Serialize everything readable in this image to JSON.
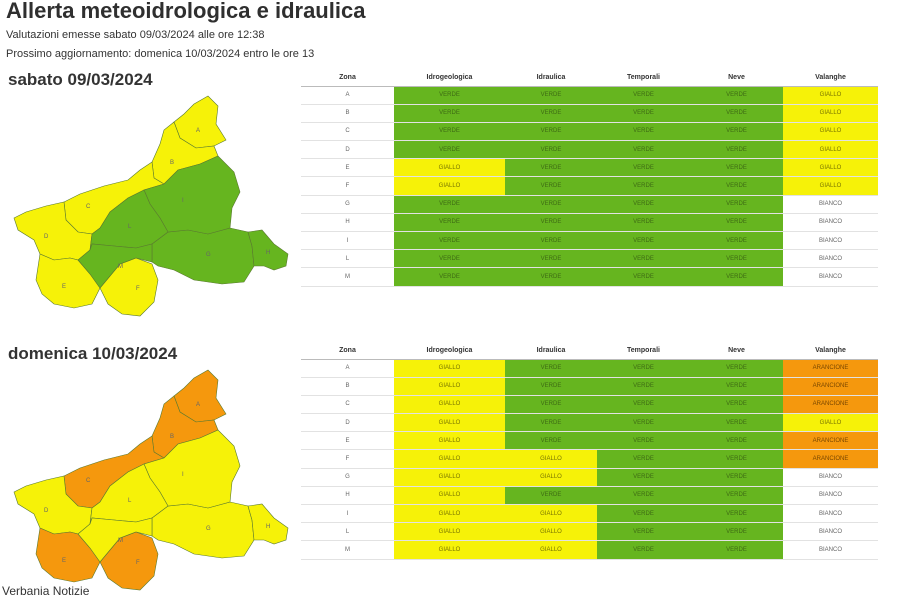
{
  "header": {
    "title": "Allerta meteoidrologica e idraulica",
    "issued": "Valutazioni emesse sabato 09/03/2024 alle ore 12:38",
    "next_update": "Prossimo aggiornamento: domenica 10/03/2024 entro le ore 13"
  },
  "columns": [
    "Zona",
    "Idrogeologica",
    "Idraulica",
    "Temporali",
    "Neve",
    "Valanghe"
  ],
  "colors": {
    "VERDE": "#66b51f",
    "GIALLO": "#f6f208",
    "ARANCIONE": "#f5980d",
    "BIANCO": "#ffffff"
  },
  "days": [
    {
      "title": "sabato 09/03/2024",
      "rows": [
        [
          "A",
          "VERDE",
          "VERDE",
          "VERDE",
          "VERDE",
          "GIALLO"
        ],
        [
          "B",
          "VERDE",
          "VERDE",
          "VERDE",
          "VERDE",
          "GIALLO"
        ],
        [
          "C",
          "VERDE",
          "VERDE",
          "VERDE",
          "VERDE",
          "GIALLO"
        ],
        [
          "D",
          "VERDE",
          "VERDE",
          "VERDE",
          "VERDE",
          "GIALLO"
        ],
        [
          "E",
          "GIALLO",
          "VERDE",
          "VERDE",
          "VERDE",
          "GIALLO"
        ],
        [
          "F",
          "GIALLO",
          "VERDE",
          "VERDE",
          "VERDE",
          "GIALLO"
        ],
        [
          "G",
          "VERDE",
          "VERDE",
          "VERDE",
          "VERDE",
          "BIANCO"
        ],
        [
          "H",
          "VERDE",
          "VERDE",
          "VERDE",
          "VERDE",
          "BIANCO"
        ],
        [
          "I",
          "VERDE",
          "VERDE",
          "VERDE",
          "VERDE",
          "BIANCO"
        ],
        [
          "L",
          "VERDE",
          "VERDE",
          "VERDE",
          "VERDE",
          "BIANCO"
        ],
        [
          "M",
          "VERDE",
          "VERDE",
          "VERDE",
          "VERDE",
          "BIANCO"
        ]
      ],
      "map_zones": {
        "A": "GIALLO",
        "B": "GIALLO",
        "C": "GIALLO",
        "D": "GIALLO",
        "E": "GIALLO",
        "F": "GIALLO",
        "G": "VERDE",
        "H": "VERDE",
        "I": "VERDE",
        "L": "VERDE",
        "M": "VERDE"
      }
    },
    {
      "title": "domenica 10/03/2024",
      "rows": [
        [
          "A",
          "GIALLO",
          "VERDE",
          "VERDE",
          "VERDE",
          "ARANCIONE"
        ],
        [
          "B",
          "GIALLO",
          "VERDE",
          "VERDE",
          "VERDE",
          "ARANCIONE"
        ],
        [
          "C",
          "GIALLO",
          "VERDE",
          "VERDE",
          "VERDE",
          "ARANCIONE"
        ],
        [
          "D",
          "GIALLO",
          "VERDE",
          "VERDE",
          "VERDE",
          "GIALLO"
        ],
        [
          "E",
          "GIALLO",
          "VERDE",
          "VERDE",
          "VERDE",
          "ARANCIONE"
        ],
        [
          "F",
          "GIALLO",
          "GIALLO",
          "VERDE",
          "VERDE",
          "ARANCIONE"
        ],
        [
          "G",
          "GIALLO",
          "GIALLO",
          "VERDE",
          "VERDE",
          "BIANCO"
        ],
        [
          "H",
          "GIALLO",
          "VERDE",
          "VERDE",
          "VERDE",
          "BIANCO"
        ],
        [
          "I",
          "GIALLO",
          "GIALLO",
          "VERDE",
          "VERDE",
          "BIANCO"
        ],
        [
          "L",
          "GIALLO",
          "GIALLO",
          "VERDE",
          "VERDE",
          "BIANCO"
        ],
        [
          "M",
          "GIALLO",
          "GIALLO",
          "VERDE",
          "VERDE",
          "BIANCO"
        ]
      ],
      "map_zones": {
        "A": "ARANCIONE",
        "B": "ARANCIONE",
        "C": "ARANCIONE",
        "D": "GIALLO",
        "E": "ARANCIONE",
        "F": "ARANCIONE",
        "G": "GIALLO",
        "H": "GIALLO",
        "I": "GIALLO",
        "L": "GIALLO",
        "M": "GIALLO"
      }
    }
  ],
  "source": "Verbania Notizie"
}
